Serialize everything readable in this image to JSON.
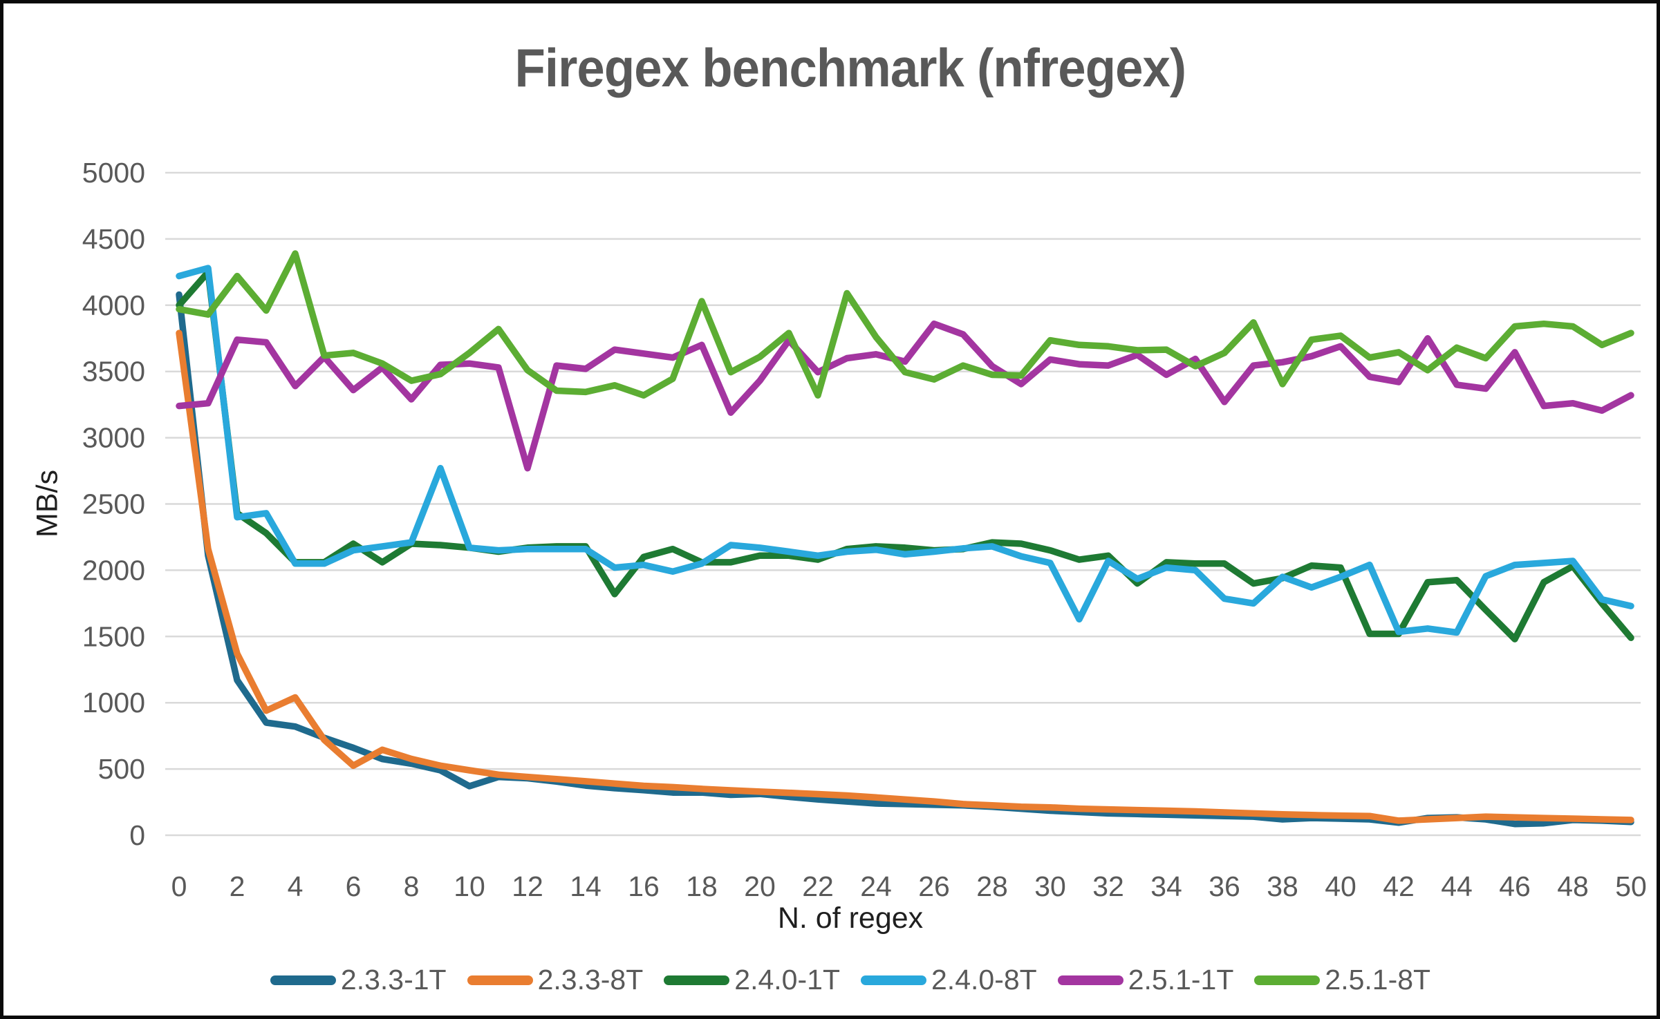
{
  "title": "Firegex benchmark (nfregex)",
  "chart_data": {
    "type": "line",
    "title": "Firegex benchmark (nfregex)",
    "xlabel": "N. of regex",
    "ylabel": "MB/s",
    "xlim": [
      0,
      50
    ],
    "ylim": [
      0,
      5000
    ],
    "grid": true,
    "legend_position": "bottom",
    "x_ticks": [
      0,
      2,
      4,
      6,
      8,
      10,
      12,
      14,
      16,
      18,
      20,
      22,
      24,
      26,
      28,
      30,
      32,
      34,
      36,
      38,
      40,
      42,
      44,
      46,
      48,
      50
    ],
    "y_ticks": [
      0,
      500,
      1000,
      1500,
      2000,
      2500,
      3000,
      3500,
      4000,
      4500,
      5000
    ],
    "x": [
      0,
      1,
      2,
      3,
      4,
      5,
      6,
      7,
      8,
      9,
      10,
      11,
      12,
      13,
      14,
      15,
      16,
      17,
      18,
      19,
      20,
      21,
      22,
      23,
      24,
      25,
      26,
      27,
      28,
      29,
      30,
      31,
      32,
      33,
      34,
      35,
      36,
      37,
      38,
      39,
      40,
      41,
      42,
      43,
      44,
      45,
      46,
      47,
      48,
      49,
      50
    ],
    "series": [
      {
        "name": "2.3.3-1T",
        "color": "#1F6A8D",
        "values": [
          4080,
          2110,
          1170,
          850,
          820,
          735,
          660,
          575,
          540,
          490,
          370,
          440,
          430,
          405,
          375,
          355,
          340,
          322,
          322,
          305,
          312,
          290,
          270,
          255,
          240,
          235,
          230,
          225,
          215,
          200,
          185,
          175,
          165,
          160,
          155,
          150,
          145,
          140,
          120,
          130,
          125,
          120,
          95,
          130,
          135,
          120,
          85,
          90,
          115,
          110,
          100
        ]
      },
      {
        "name": "2.3.3-8T",
        "color": "#E97D30",
        "values": [
          3790,
          2160,
          1370,
          940,
          1040,
          720,
          525,
          645,
          576,
          525,
          490,
          457,
          440,
          424,
          407,
          390,
          373,
          363,
          350,
          339,
          329,
          320,
          310,
          300,
          285,
          270,
          255,
          235,
          225,
          215,
          210,
          200,
          195,
          190,
          185,
          180,
          172,
          165,
          158,
          152,
          148,
          145,
          110,
          120,
          130,
          140,
          135,
          130,
          125,
          120,
          115
        ]
      },
      {
        "name": "2.4.0-1T",
        "color": "#1E7A33",
        "values": [
          4000,
          4250,
          2430,
          2280,
          2060,
          2060,
          2200,
          2060,
          2200,
          2190,
          2170,
          2140,
          2170,
          2180,
          2180,
          1820,
          2100,
          2160,
          2060,
          2060,
          2110,
          2110,
          2080,
          2160,
          2180,
          2170,
          2150,
          2160,
          2210,
          2200,
          2150,
          2080,
          2110,
          1900,
          2060,
          2050,
          2050,
          1900,
          1940,
          2035,
          2020,
          1520,
          1520,
          1910,
          1925,
          1700,
          1480,
          1910,
          2030,
          1750,
          1490
        ]
      },
      {
        "name": "2.4.0-8T",
        "color": "#29A8DC",
        "values": [
          4220,
          4280,
          2400,
          2430,
          2050,
          2050,
          2150,
          2180,
          2210,
          2770,
          2170,
          2150,
          2160,
          2160,
          2160,
          2020,
          2040,
          1990,
          2050,
          2190,
          2170,
          2140,
          2110,
          2140,
          2155,
          2120,
          2140,
          2165,
          2180,
          2105,
          2055,
          1630,
          2070,
          1935,
          2020,
          2000,
          1785,
          1750,
          1950,
          1870,
          1950,
          2040,
          1535,
          1560,
          1530,
          1955,
          2040,
          2055,
          2070,
          1780,
          1730
        ]
      },
      {
        "name": "2.5.1-1T",
        "color": "#A335A0",
        "values": [
          3240,
          3260,
          3740,
          3720,
          3390,
          3610,
          3360,
          3530,
          3290,
          3550,
          3560,
          3530,
          2770,
          3545,
          3520,
          3665,
          3635,
          3605,
          3700,
          3190,
          3430,
          3735,
          3495,
          3600,
          3630,
          3575,
          3860,
          3780,
          3540,
          3405,
          3590,
          3555,
          3545,
          3625,
          3475,
          3595,
          3270,
          3545,
          3570,
          3615,
          3690,
          3460,
          3420,
          3750,
          3400,
          3370,
          3645,
          3240,
          3260,
          3205,
          3320
        ]
      },
      {
        "name": "2.5.1-8T",
        "color": "#5CAD33",
        "values": [
          3970,
          3930,
          4220,
          3960,
          4390,
          3620,
          3640,
          3560,
          3430,
          3480,
          3640,
          3820,
          3510,
          3355,
          3345,
          3395,
          3320,
          3445,
          4030,
          3495,
          3610,
          3790,
          3320,
          4090,
          3760,
          3495,
          3440,
          3545,
          3475,
          3470,
          3735,
          3700,
          3690,
          3660,
          3665,
          3540,
          3640,
          3870,
          3405,
          3740,
          3770,
          3605,
          3645,
          3510,
          3680,
          3600,
          3840,
          3860,
          3840,
          3700,
          3790
        ]
      }
    ],
    "style": {
      "gridline_color": "#D9D9D9",
      "tick_label_color": "#595959",
      "axis_title_color": "#1f1f1f",
      "title_color": "#595959",
      "background": "#ffffff",
      "border_color": "#0a0a0a"
    }
  }
}
